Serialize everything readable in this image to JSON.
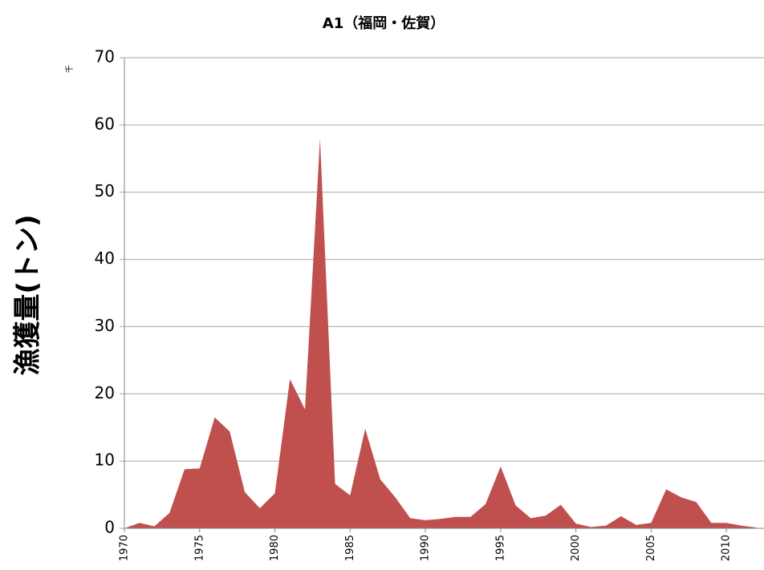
{
  "chart_data": {
    "type": "area",
    "title": "A1（福岡・佐賀）",
    "y_label": "漁獲量(トン)",
    "y_unit": "千",
    "x": [
      1970,
      1971,
      1972,
      1973,
      1974,
      1975,
      1976,
      1977,
      1978,
      1979,
      1980,
      1981,
      1982,
      1983,
      1984,
      1985,
      1986,
      1987,
      1988,
      1989,
      1990,
      1991,
      1992,
      1993,
      1994,
      1995,
      1996,
      1997,
      1998,
      1999,
      2000,
      2001,
      2002,
      2003,
      2004,
      2005,
      2006,
      2007,
      2008,
      2009,
      2010,
      2011,
      2012
    ],
    "values": [
      0,
      0.8,
      0.3,
      2.3,
      8.8,
      8.9,
      16.5,
      14.4,
      5.4,
      3.0,
      5.2,
      22.2,
      17.7,
      58,
      6.6,
      4.9,
      14.8,
      7.3,
      4.6,
      1.5,
      1.2,
      1.4,
      1.7,
      1.7,
      3.6,
      9.2,
      3.4,
      1.5,
      1.9,
      3.5,
      0.7,
      0.2,
      0.4,
      1.8,
      0.5,
      0.8,
      5.8,
      4.6,
      3.9,
      0.8,
      0.8,
      0.4,
      0.1
    ],
    "color": "#c0504d",
    "xlim": [
      1970,
      2012.5
    ],
    "xticks": [
      1970,
      1975,
      1980,
      1985,
      1990,
      1995,
      2000,
      2005,
      2010
    ],
    "ylim": [
      0,
      70
    ],
    "yticks": [
      0,
      10,
      20,
      30,
      40,
      50,
      60,
      70
    ],
    "grid": true
  }
}
